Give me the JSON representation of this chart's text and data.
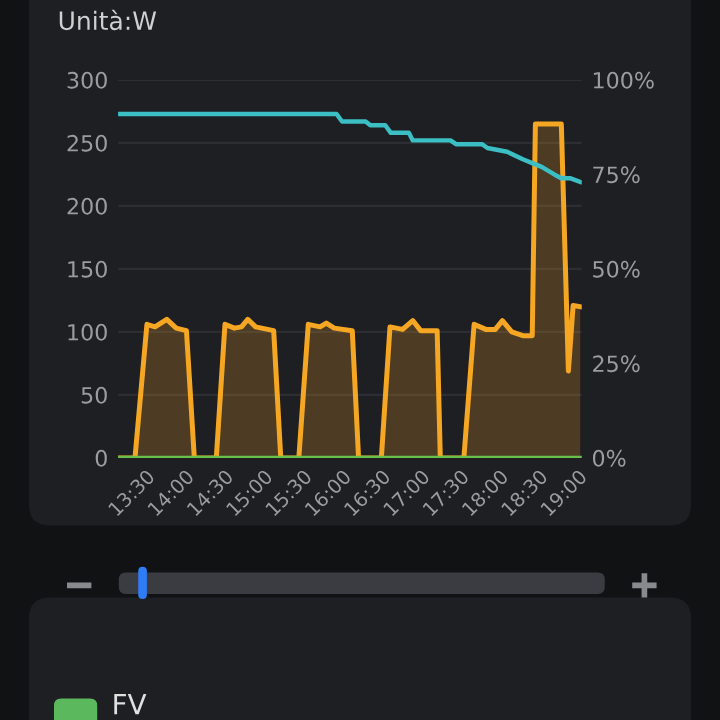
{
  "chart_data": {
    "type": "area",
    "ylabel": "Unità:W",
    "annotations": [
      "FV"
    ],
    "series": [
      {
        "color": "#f5a623",
        "x": [
          13.17,
          13.365,
          13.517,
          13.62,
          13.77,
          13.89,
          14.02,
          14.12,
          14.4,
          14.51,
          14.63,
          14.72,
          14.8,
          14.9,
          15.13,
          15.22,
          15.45,
          15.57,
          15.72,
          15.8,
          15.9,
          16.13,
          16.21,
          16.5,
          16.61,
          16.77,
          16.9,
          17.0,
          17.21,
          17.25,
          17.55,
          17.68,
          17.83,
          17.95,
          18.04,
          18.16,
          18.3,
          18.42,
          18.46,
          18.54,
          18.79,
          18.88,
          18.94,
          19.03
        ],
        "values": [
          0,
          0,
          106,
          104,
          110,
          103,
          101,
          0,
          0,
          106,
          103,
          104,
          110,
          104,
          101,
          0,
          0,
          106,
          104,
          107,
          103,
          101,
          0,
          0,
          104,
          102,
          109,
          101,
          101,
          0,
          0,
          106,
          102,
          102,
          109,
          100,
          97,
          97,
          265,
          265,
          265,
          69,
          121,
          120
        ]
      },
      {
        "type": "line",
        "axis": "y2",
        "color": "#3bbfc4",
        "x": [
          13.17,
          15.93,
          16.0,
          16.3,
          16.36,
          16.55,
          16.62,
          16.85,
          16.9,
          17.38,
          17.45,
          17.78,
          17.85,
          18.1,
          18.3,
          18.42,
          18.54,
          18.7,
          18.79,
          18.9,
          19.03
        ],
        "values": [
          91,
          91,
          89,
          89,
          88,
          88,
          86,
          86,
          84,
          84,
          83,
          83,
          82,
          81,
          79,
          78,
          77,
          75,
          74,
          74,
          73
        ]
      },
      {
        "type": "line",
        "color": "#6abf4b",
        "x": [
          13.17,
          19.03
        ],
        "values": [
          0,
          0
        ]
      }
    ],
    "xlim": [
      13.15,
      19.05
    ],
    "xticks": [
      {
        "value": 13.5,
        "label": "13:30"
      },
      {
        "value": 14,
        "label": "14:00"
      },
      {
        "value": 14.5,
        "label": "14:30"
      },
      {
        "value": 15,
        "label": "15:00"
      },
      {
        "value": 15.5,
        "label": "15:30"
      },
      {
        "value": 16,
        "label": "16:00"
      },
      {
        "value": 16.5,
        "label": "16:30"
      },
      {
        "value": 17,
        "label": "17:00"
      },
      {
        "value": 17.5,
        "label": "17:30"
      },
      {
        "value": 18,
        "label": "18:00"
      },
      {
        "value": 18.5,
        "label": "18:30"
      },
      {
        "value": 19,
        "label": "19:00"
      }
    ],
    "ylim": [
      0,
      300
    ],
    "yticks": [
      0,
      50,
      100,
      150,
      200,
      250,
      300
    ],
    "y2lim": [
      0,
      100
    ],
    "y2ticks": [
      {
        "value": 0,
        "label": "0%"
      },
      {
        "value": 25,
        "label": "25%"
      },
      {
        "value": 50,
        "label": "50%"
      },
      {
        "value": 75,
        "label": "75%"
      },
      {
        "value": 100,
        "label": "100%"
      }
    ],
    "grid": "y",
    "legend": false
  }
}
